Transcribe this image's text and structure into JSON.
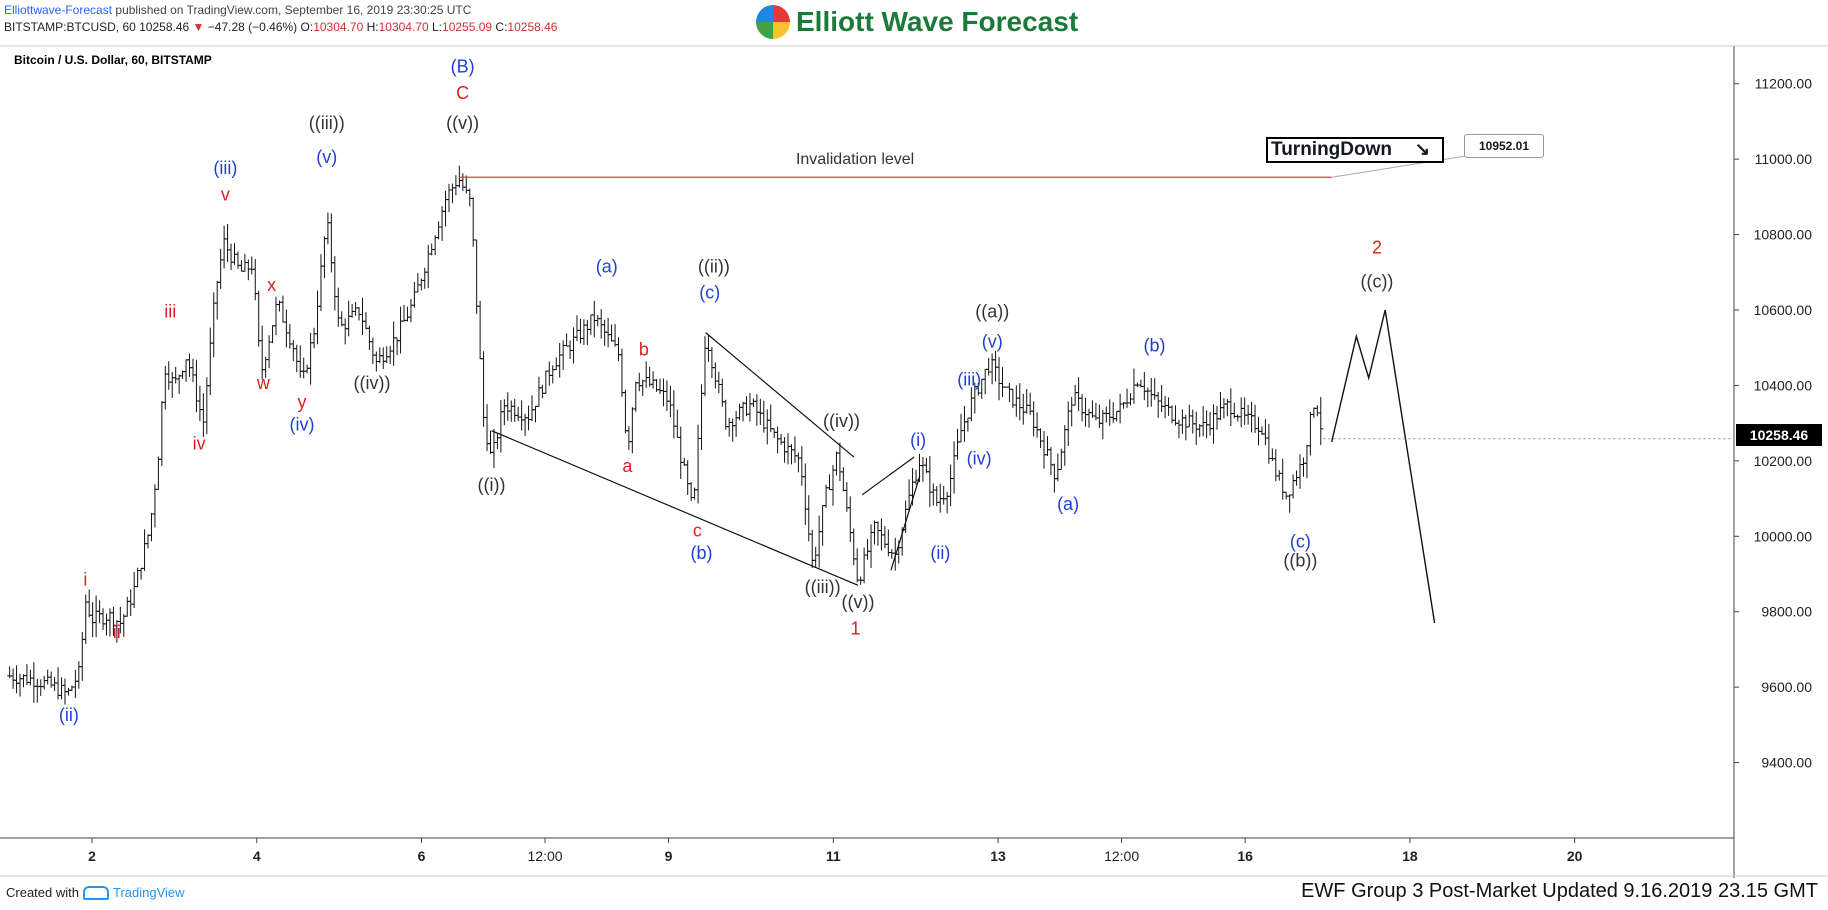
{
  "header": {
    "publisher": "Elliottwave-Forecast",
    "published_text": "published on TradingView.com, September 16, 2019 23:30:25 UTC",
    "ohlc_prefix": "BITSTAMP:BTCUSD, 60  10258.46",
    "change": "−47.28 (−0.46%)",
    "open_label": "O:",
    "open": "10304.70",
    "high_label": "H:",
    "high": "10304.70",
    "low_label": "L:",
    "low": "10255.09",
    "close_label": "C:",
    "close": "10258.46",
    "logo_text": "Elliott Wave Forecast"
  },
  "footer": {
    "created_with": "Created with",
    "tradingview": "TradingView",
    "update_text": "EWF Group 3 Post-Market Updated 9.16.2019 23.15 GMT"
  },
  "chart_data": {
    "type": "candlestick",
    "title": "Bitcoin / U.S. Dollar, 60, BITSTAMP",
    "ylim": [
      9200,
      11300
    ],
    "xlim": [
      0,
      20
    ],
    "x_ticks": [
      {
        "label": "2",
        "x": 1.0
      },
      {
        "label": "4",
        "x": 3.0
      },
      {
        "label": "6",
        "x": 5.0
      },
      {
        "label": "12:00",
        "x": 6.5
      },
      {
        "label": "9",
        "x": 8.0
      },
      {
        "label": "11",
        "x": 10.0
      },
      {
        "label": "13",
        "x": 12.0
      },
      {
        "label": "12:00",
        "x": 13.5
      },
      {
        "label": "16",
        "x": 15.0
      },
      {
        "label": "18",
        "x": 17.0
      },
      {
        "label": "20",
        "x": 19.0
      }
    ],
    "y_ticks": [
      9400,
      9600,
      9800,
      10000,
      10200,
      10400,
      10600,
      10800,
      11000,
      11200
    ],
    "y_tick_labels": [
      "9400.00",
      "9600.00",
      "9800.00",
      "10000.00",
      "10200.00",
      "10400.00",
      "10600.00",
      "10800.00",
      "11000.00",
      "11200.00"
    ],
    "last_price": 10258.46,
    "last_price_label": "10258.46",
    "price_path": [
      [
        0,
        9630
      ],
      [
        0.3,
        9620
      ],
      [
        0.55,
        9600
      ],
      [
        0.7,
        9580
      ],
      [
        0.85,
        9640
      ],
      [
        0.92,
        9830
      ],
      [
        1.0,
        9780
      ],
      [
        1.2,
        9790
      ],
      [
        1.35,
        9770
      ],
      [
        1.5,
        9850
      ],
      [
        1.7,
        10020
      ],
      [
        1.8,
        10200
      ],
      [
        1.88,
        10450
      ],
      [
        2.0,
        10400
      ],
      [
        2.15,
        10480
      ],
      [
        2.35,
        10300
      ],
      [
        2.5,
        10650
      ],
      [
        2.6,
        10780
      ],
      [
        2.8,
        10700
      ],
      [
        2.95,
        10720
      ],
      [
        3.05,
        10430
      ],
      [
        3.25,
        10620
      ],
      [
        3.45,
        10500
      ],
      [
        3.55,
        10400
      ],
      [
        3.7,
        10550
      ],
      [
        3.85,
        10840
      ],
      [
        4.0,
        10550
      ],
      [
        4.25,
        10600
      ],
      [
        4.45,
        10460
      ],
      [
        4.7,
        10530
      ],
      [
        4.9,
        10620
      ],
      [
        5.1,
        10760
      ],
      [
        5.3,
        10900
      ],
      [
        5.45,
        10950
      ],
      [
        5.6,
        10880
      ],
      [
        5.75,
        10320
      ],
      [
        5.85,
        10200
      ],
      [
        6.0,
        10350
      ],
      [
        6.3,
        10320
      ],
      [
        6.6,
        10460
      ],
      [
        6.9,
        10530
      ],
      [
        7.1,
        10580
      ],
      [
        7.4,
        10480
      ],
      [
        7.5,
        10230
      ],
      [
        7.6,
        10420
      ],
      [
        7.8,
        10400
      ],
      [
        8.0,
        10360
      ],
      [
        8.3,
        10060
      ],
      [
        8.45,
        10540
      ],
      [
        8.7,
        10300
      ],
      [
        9.0,
        10350
      ],
      [
        9.3,
        10260
      ],
      [
        9.6,
        10200
      ],
      [
        9.75,
        9920
      ],
      [
        9.9,
        10100
      ],
      [
        10.05,
        10220
      ],
      [
        10.3,
        9880
      ],
      [
        10.5,
        10020
      ],
      [
        10.75,
        9950
      ],
      [
        10.95,
        10130
      ],
      [
        11.05,
        10200
      ],
      [
        11.25,
        10090
      ],
      [
        11.4,
        10130
      ],
      [
        11.55,
        10280
      ],
      [
        11.7,
        10370
      ],
      [
        11.9,
        10460
      ],
      [
        12.1,
        10380
      ],
      [
        12.4,
        10320
      ],
      [
        12.7,
        10160
      ],
      [
        12.9,
        10370
      ],
      [
        13.2,
        10300
      ],
      [
        13.5,
        10340
      ],
      [
        13.7,
        10420
      ],
      [
        13.9,
        10360
      ],
      [
        14.2,
        10310
      ],
      [
        14.5,
        10290
      ],
      [
        14.8,
        10350
      ],
      [
        15.0,
        10310
      ],
      [
        15.2,
        10290
      ],
      [
        15.35,
        10180
      ],
      [
        15.5,
        10110
      ],
      [
        15.7,
        10200
      ],
      [
        15.85,
        10370
      ],
      [
        15.95,
        10258
      ]
    ],
    "projection_path": [
      [
        16.05,
        10250
      ],
      [
        16.35,
        10530
      ],
      [
        16.5,
        10420
      ],
      [
        16.7,
        10600
      ],
      [
        17.3,
        9770
      ]
    ],
    "invalidation": {
      "from_x": 5.45,
      "to_x": 16.05,
      "y": 10952.01,
      "label": "Invalidation level",
      "tag": "10952.01"
    },
    "trendlines": [
      {
        "name": "diagonal-upper",
        "points": [
          [
            8.45,
            10540
          ],
          [
            10.25,
            10210
          ]
        ]
      },
      {
        "name": "diagonal-lower",
        "points": [
          [
            5.85,
            10280
          ],
          [
            10.3,
            9870
          ]
        ]
      },
      {
        "name": "channel-upper",
        "points": [
          [
            10.35,
            10110
          ],
          [
            10.98,
            10210
          ]
        ]
      },
      {
        "name": "channel-lower",
        "points": [
          [
            10.7,
            9910
          ],
          [
            11.05,
            10160
          ]
        ]
      }
    ],
    "turning_label": "TurningDown",
    "turning_arrow": "↘",
    "annotations": [
      {
        "text": "(ii)",
        "x": 0.72,
        "y": 9510,
        "color": "#1f3fd6"
      },
      {
        "text": "i",
        "x": 0.92,
        "y": 9870,
        "color": "#e02020"
      },
      {
        "text": "ii",
        "x": 1.3,
        "y": 9730,
        "color": "#e02020"
      },
      {
        "text": "iii",
        "x": 1.95,
        "y": 10580,
        "color": "#e02020"
      },
      {
        "text": "iv",
        "x": 2.3,
        "y": 10230,
        "color": "#e02020"
      },
      {
        "text": "(iii)",
        "x": 2.62,
        "y": 10960,
        "color": "#1f3fd6"
      },
      {
        "text": "v",
        "x": 2.62,
        "y": 10890,
        "color": "#e02020"
      },
      {
        "text": "w",
        "x": 3.08,
        "y": 10390,
        "color": "#e02020"
      },
      {
        "text": "x",
        "x": 3.18,
        "y": 10650,
        "color": "#e02020"
      },
      {
        "text": "y",
        "x": 3.55,
        "y": 10340,
        "color": "#e02020"
      },
      {
        "text": "(iv)",
        "x": 3.55,
        "y": 10280,
        "color": "#1f3fd6"
      },
      {
        "text": "((iii))",
        "x": 3.85,
        "y": 11080,
        "color": "#333333"
      },
      {
        "text": "(v)",
        "x": 3.85,
        "y": 10990,
        "color": "#1f3fd6"
      },
      {
        "text": "((iv))",
        "x": 4.4,
        "y": 10390,
        "color": "#333333"
      },
      {
        "text": "(B)",
        "x": 5.5,
        "y": 11230,
        "color": "#1f3fd6"
      },
      {
        "text": "C",
        "x": 5.5,
        "y": 11160,
        "color": "#e02020"
      },
      {
        "text": "((v))",
        "x": 5.5,
        "y": 11080,
        "color": "#333333"
      },
      {
        "text": "((i))",
        "x": 5.85,
        "y": 10120,
        "color": "#333333"
      },
      {
        "text": "(a)",
        "x": 7.25,
        "y": 10700,
        "color": "#1f3fd6"
      },
      {
        "text": "b",
        "x": 7.7,
        "y": 10480,
        "color": "#e02020"
      },
      {
        "text": "a",
        "x": 7.5,
        "y": 10170,
        "color": "#e02020"
      },
      {
        "text": "((ii))",
        "x": 8.55,
        "y": 10700,
        "color": "#333333"
      },
      {
        "text": "(c)",
        "x": 8.5,
        "y": 10630,
        "color": "#1f3fd6"
      },
      {
        "text": "c",
        "x": 8.35,
        "y": 10000,
        "color": "#e02020"
      },
      {
        "text": "(b)",
        "x": 8.4,
        "y": 9940,
        "color": "#1f3fd6"
      },
      {
        "text": "((iv))",
        "x": 10.1,
        "y": 10290,
        "color": "#333333"
      },
      {
        "text": "((iii))",
        "x": 9.87,
        "y": 9850,
        "color": "#333333"
      },
      {
        "text": "((v))",
        "x": 10.3,
        "y": 9810,
        "color": "#333333"
      },
      {
        "text": "1",
        "x": 10.27,
        "y": 9740,
        "color": "#e02020"
      },
      {
        "text": "(i)",
        "x": 11.03,
        "y": 10240,
        "color": "#1f3fd6"
      },
      {
        "text": "(ii)",
        "x": 11.3,
        "y": 9940,
        "color": "#1f3fd6"
      },
      {
        "text": "(iii)",
        "x": 11.65,
        "y": 10400,
        "color": "#1f3fd6"
      },
      {
        "text": "(iv)",
        "x": 11.77,
        "y": 10190,
        "color": "#1f3fd6"
      },
      {
        "text": "((a))",
        "x": 11.93,
        "y": 10580,
        "color": "#333333"
      },
      {
        "text": "(v)",
        "x": 11.93,
        "y": 10500,
        "color": "#1f3fd6"
      },
      {
        "text": "(a)",
        "x": 12.85,
        "y": 10070,
        "color": "#1f3fd6"
      },
      {
        "text": "(b)",
        "x": 13.9,
        "y": 10490,
        "color": "#1f3fd6"
      },
      {
        "text": "(c)",
        "x": 15.67,
        "y": 9970,
        "color": "#1f3fd6"
      },
      {
        "text": "((b))",
        "x": 15.67,
        "y": 9920,
        "color": "#333333"
      },
      {
        "text": "2",
        "x": 16.6,
        "y": 10750,
        "color": "#e02020"
      },
      {
        "text": "((c))",
        "x": 16.6,
        "y": 10660,
        "color": "#333333"
      }
    ]
  }
}
